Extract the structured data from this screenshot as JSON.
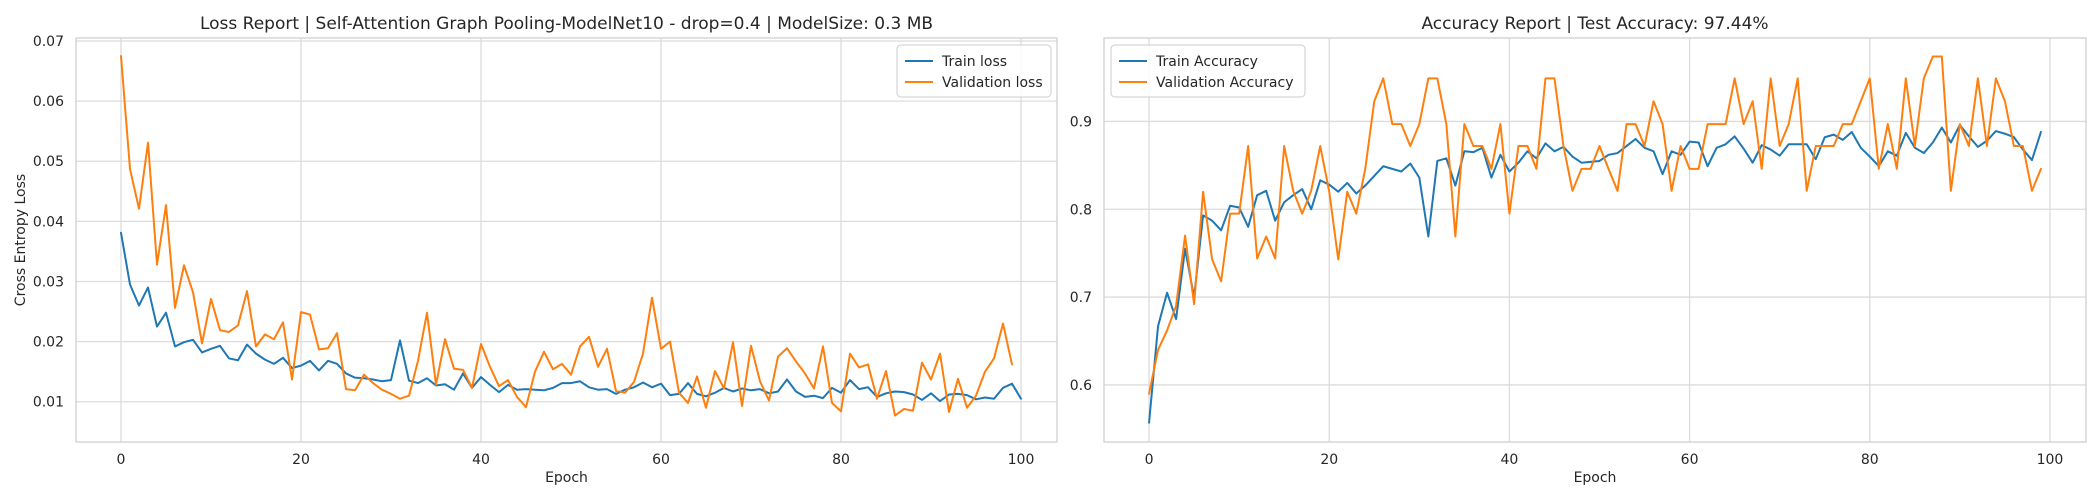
{
  "chart_data": [
    {
      "type": "line",
      "title": "Loss Report | Self-Attention Graph Pooling-ModelNet10 - drop=0.4 | ModelSize: 0.3 MB",
      "xlabel": "Epoch",
      "ylabel": "Cross Entropy Loss",
      "xlim": [
        -5,
        104
      ],
      "ylim": [
        0.0033,
        0.0705
      ],
      "xticks": [
        0,
        20,
        40,
        60,
        80,
        100
      ],
      "yticks": [
        0.01,
        0.02,
        0.03,
        0.04,
        0.05,
        0.06,
        0.07
      ],
      "ytick_labels": [
        "0.01",
        "0.02",
        "0.03",
        "0.04",
        "0.05",
        "0.06",
        "0.07"
      ],
      "grid": true,
      "legend_position": "top-right",
      "series": [
        {
          "name": "Train loss",
          "color": "#1f77b4",
          "values": [
            0.0381,
            0.0295,
            0.026,
            0.029,
            0.0225,
            0.0248,
            0.0192,
            0.0199,
            0.0203,
            0.0182,
            0.0188,
            0.0193,
            0.0172,
            0.0169,
            0.0195,
            0.018,
            0.017,
            0.0163,
            0.0173,
            0.0156,
            0.016,
            0.0168,
            0.0152,
            0.0168,
            0.0163,
            0.0147,
            0.014,
            0.0139,
            0.0137,
            0.0134,
            0.0136,
            0.0202,
            0.0135,
            0.0131,
            0.0139,
            0.0127,
            0.0129,
            0.012,
            0.0147,
            0.0123,
            0.0141,
            0.0128,
            0.0116,
            0.0128,
            0.012,
            0.0121,
            0.012,
            0.0119,
            0.0123,
            0.0131,
            0.0131,
            0.0134,
            0.0124,
            0.012,
            0.0121,
            0.0113,
            0.012,
            0.0124,
            0.0132,
            0.0124,
            0.013,
            0.0111,
            0.0113,
            0.0131,
            0.0113,
            0.0109,
            0.0115,
            0.0123,
            0.0117,
            0.0122,
            0.0119,
            0.0121,
            0.0114,
            0.0117,
            0.0137,
            0.0117,
            0.0108,
            0.011,
            0.0106,
            0.0123,
            0.0115,
            0.0136,
            0.0121,
            0.0124,
            0.0108,
            0.0114,
            0.0117,
            0.0116,
            0.0112,
            0.0103,
            0.0114,
            0.0101,
            0.0112,
            0.0113,
            0.0111,
            0.0104,
            0.0107,
            0.0105,
            0.0123,
            0.013,
            0.0105
          ]
        },
        {
          "name": "Validation loss",
          "color": "#ff7f0e",
          "values": [
            0.0675,
            0.0487,
            0.0421,
            0.0531,
            0.0328,
            0.0427,
            0.0256,
            0.0327,
            0.0282,
            0.0197,
            0.0271,
            0.0219,
            0.0216,
            0.0227,
            0.0284,
            0.0192,
            0.0212,
            0.0204,
            0.0232,
            0.0137,
            0.0249,
            0.0245,
            0.0187,
            0.0189,
            0.0214,
            0.0121,
            0.0119,
            0.0145,
            0.0131,
            0.012,
            0.0113,
            0.0105,
            0.011,
            0.0168,
            0.0248,
            0.0128,
            0.0204,
            0.0155,
            0.0153,
            0.0123,
            0.0196,
            0.0158,
            0.0126,
            0.0136,
            0.0108,
            0.0091,
            0.015,
            0.0183,
            0.0154,
            0.0163,
            0.0145,
            0.0192,
            0.0208,
            0.0158,
            0.0188,
            0.0118,
            0.0115,
            0.0133,
            0.018,
            0.0273,
            0.0188,
            0.02,
            0.0115,
            0.0098,
            0.0142,
            0.009,
            0.0151,
            0.0122,
            0.0199,
            0.0093,
            0.0193,
            0.0134,
            0.0102,
            0.0175,
            0.0189,
            0.0167,
            0.0147,
            0.0122,
            0.0192,
            0.0098,
            0.0084,
            0.018,
            0.0157,
            0.0162,
            0.0105,
            0.0151,
            0.0077,
            0.0088,
            0.0085,
            0.0165,
            0.0137,
            0.018,
            0.0083,
            0.0138,
            0.009,
            0.011,
            0.015,
            0.0172,
            0.023,
            0.0162
          ]
        }
      ]
    },
    {
      "type": "line",
      "title": "Accuracy Report | Test Accuracy: 97.44%",
      "xlabel": "Epoch",
      "ylabel": "",
      "xlim": [
        -5,
        104
      ],
      "ylim": [
        0.535,
        0.995
      ],
      "xticks": [
        0,
        20,
        40,
        60,
        80,
        100
      ],
      "yticks": [
        0.6,
        0.7,
        0.8,
        0.9
      ],
      "ytick_labels": [
        "0.6",
        "0.7",
        "0.8",
        "0.9"
      ],
      "grid": true,
      "legend_position": "top-left",
      "series": [
        {
          "name": "Train Accuracy",
          "color": "#1f77b4",
          "values": [
            0.557,
            0.667,
            0.705,
            0.675,
            0.755,
            0.7,
            0.793,
            0.787,
            0.776,
            0.804,
            0.802,
            0.78,
            0.816,
            0.821,
            0.787,
            0.808,
            0.816,
            0.823,
            0.8,
            0.833,
            0.828,
            0.82,
            0.83,
            0.818,
            0.827,
            0.838,
            0.849,
            0.846,
            0.843,
            0.852,
            0.836,
            0.769,
            0.855,
            0.858,
            0.827,
            0.866,
            0.865,
            0.87,
            0.836,
            0.862,
            0.843,
            0.853,
            0.866,
            0.858,
            0.875,
            0.866,
            0.871,
            0.86,
            0.853,
            0.854,
            0.855,
            0.862,
            0.864,
            0.872,
            0.88,
            0.87,
            0.866,
            0.84,
            0.866,
            0.862,
            0.877,
            0.876,
            0.849,
            0.87,
            0.874,
            0.883,
            0.869,
            0.853,
            0.873,
            0.868,
            0.861,
            0.874,
            0.874,
            0.874,
            0.857,
            0.882,
            0.885,
            0.879,
            0.888,
            0.87,
            0.86,
            0.849,
            0.866,
            0.861,
            0.887,
            0.87,
            0.864,
            0.876,
            0.893,
            0.876,
            0.896,
            0.883,
            0.871,
            0.878,
            0.889,
            0.886,
            0.882,
            0.868,
            0.856,
            0.888
          ]
        },
        {
          "name": "Validation Accuracy",
          "color": "#ff7f0e",
          "values": [
            0.59,
            0.64,
            0.662,
            0.69,
            0.77,
            0.692,
            0.82,
            0.743,
            0.718,
            0.795,
            0.795,
            0.872,
            0.744,
            0.769,
            0.744,
            0.872,
            0.821,
            0.795,
            0.821,
            0.872,
            0.82,
            0.743,
            0.82,
            0.795,
            0.846,
            0.923,
            0.949,
            0.897,
            0.897,
            0.872,
            0.897,
            0.949,
            0.949,
            0.897,
            0.769,
            0.897,
            0.872,
            0.872,
            0.846,
            0.897,
            0.795,
            0.872,
            0.872,
            0.846,
            0.949,
            0.949,
            0.872,
            0.821,
            0.846,
            0.846,
            0.872,
            0.846,
            0.821,
            0.897,
            0.897,
            0.872,
            0.923,
            0.897,
            0.821,
            0.872,
            0.846,
            0.846,
            0.897,
            0.897,
            0.897,
            0.949,
            0.897,
            0.923,
            0.846,
            0.949,
            0.872,
            0.897,
            0.949,
            0.821,
            0.872,
            0.872,
            0.872,
            0.897,
            0.897,
            0.923,
            0.949,
            0.846,
            0.897,
            0.846,
            0.949,
            0.872,
            0.949,
            0.974,
            0.974,
            0.821,
            0.897,
            0.872,
            0.949,
            0.872,
            0.949,
            0.923,
            0.872,
            0.872,
            0.821,
            0.846
          ]
        }
      ]
    }
  ]
}
